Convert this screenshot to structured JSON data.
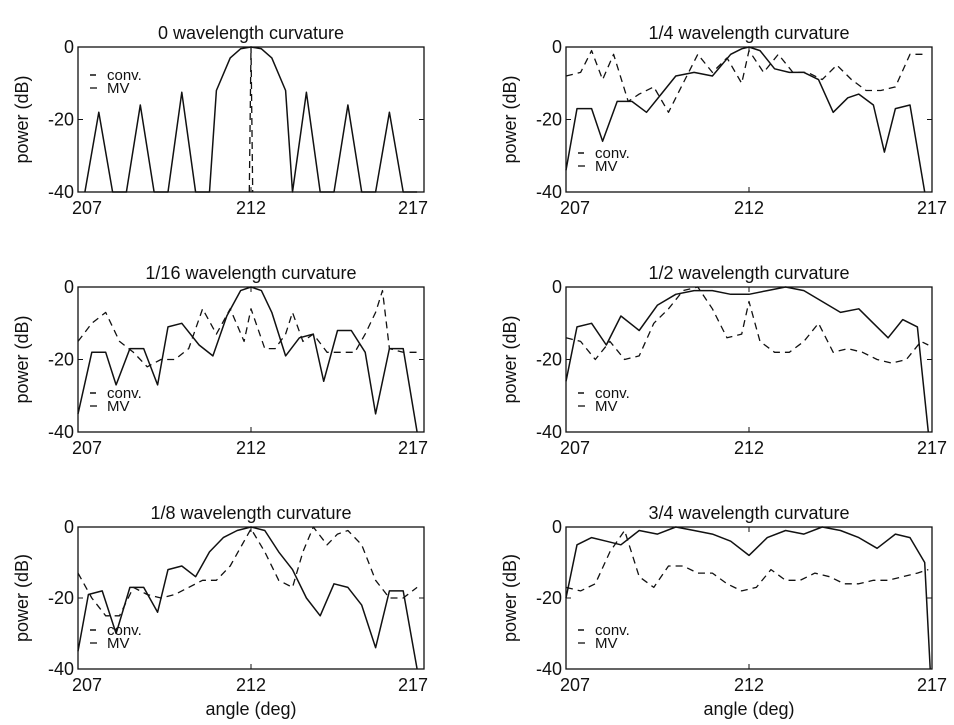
{
  "chart_data": [
    {
      "type": "line",
      "title": "0 wavelength curvature",
      "xlabel": "",
      "ylabel": "power (dB)",
      "xlim": [
        207,
        217
      ],
      "ylim": [
        -40,
        0
      ],
      "xticks": [
        "207",
        "212",
        "217"
      ],
      "yticks": [
        "0",
        "-20",
        "-40"
      ],
      "legend": [
        "conv.",
        "MV"
      ],
      "legend_placement": "upper-left",
      "series": [
        {
          "name": "conv.",
          "style": "solid",
          "x": [
            207.2,
            207.6,
            208.0,
            208.4,
            208.8,
            209.2,
            209.6,
            210.0,
            210.4,
            210.8,
            211.0,
            211.4,
            211.7,
            212.0,
            212.3,
            212.6,
            213.0,
            213.2,
            213.6,
            214.0,
            214.4,
            214.8,
            215.2,
            215.6,
            216.0,
            216.4,
            216.8
          ],
          "y": [
            -40,
            -18,
            -40,
            -40,
            -16,
            -40,
            -40,
            -12.5,
            -40,
            -40,
            -12,
            -3,
            -0.5,
            0,
            -0.5,
            -3,
            -12,
            -40,
            -12.5,
            -40,
            -40,
            -16,
            -40,
            -40,
            -18,
            -40,
            -40
          ]
        },
        {
          "name": "MV",
          "style": "dashed",
          "x": [
            211.95,
            212.0,
            212.05
          ],
          "y": [
            -40,
            0,
            -40
          ]
        }
      ]
    },
    {
      "type": "line",
      "title": "1/16 wavelength curvature",
      "xlabel": "",
      "ylabel": "power (dB)",
      "xlim": [
        207,
        217
      ],
      "ylim": [
        -40,
        0
      ],
      "xticks": [
        "207",
        "212",
        "217"
      ],
      "yticks": [
        "0",
        "-20",
        "-40"
      ],
      "legend": [
        "conv.",
        "MV"
      ],
      "legend_placement": "lower-left",
      "series": [
        {
          "name": "conv.",
          "style": "solid",
          "x": [
            207.0,
            207.4,
            207.8,
            208.1,
            208.5,
            208.9,
            209.3,
            209.6,
            210.0,
            210.5,
            210.9,
            211.3,
            211.7,
            212.0,
            212.3,
            212.6,
            213.0,
            213.4,
            213.8,
            214.1,
            214.5,
            214.9,
            215.3,
            215.6,
            216.0,
            216.4,
            216.8
          ],
          "y": [
            -35,
            -18,
            -18,
            -27,
            -17,
            -17,
            -27,
            -11,
            -10,
            -16,
            -19,
            -8,
            -1,
            0,
            -1,
            -7,
            -19,
            -14,
            -13,
            -26,
            -12,
            -12,
            -18,
            -35,
            -17,
            -17,
            -40
          ]
        },
        {
          "name": "MV",
          "style": "dashed",
          "x": [
            207.0,
            207.4,
            207.8,
            208.2,
            208.6,
            209.0,
            209.4,
            209.8,
            210.2,
            210.6,
            211.0,
            211.4,
            211.8,
            212.0,
            212.4,
            212.7,
            213.0,
            213.2,
            213.5,
            213.8,
            214.2,
            214.6,
            215.0,
            215.3,
            215.6,
            215.8,
            216.0,
            216.4,
            216.8
          ],
          "y": [
            -15,
            -10,
            -7,
            -15,
            -18,
            -22,
            -20,
            -20,
            -17,
            -6,
            -13,
            -6,
            -15,
            -6,
            -17,
            -17,
            -13,
            -7,
            -15,
            -13,
            -18,
            -18,
            -18,
            -13,
            -7,
            -1,
            -17,
            -18,
            -18
          ]
        }
      ]
    },
    {
      "type": "line",
      "title": "1/8 wavelength curvature",
      "xlabel": "angle (deg)",
      "ylabel": "power (dB)",
      "xlim": [
        207,
        217
      ],
      "ylim": [
        -40,
        0
      ],
      "xticks": [
        "207",
        "212",
        "217"
      ],
      "yticks": [
        "0",
        "-20",
        "-40"
      ],
      "legend": [
        "conv.",
        "MV"
      ],
      "legend_placement": "lower-left",
      "series": [
        {
          "name": "conv.",
          "style": "solid",
          "x": [
            207.0,
            207.3,
            207.7,
            208.1,
            208.5,
            208.9,
            209.3,
            209.6,
            210.0,
            210.4,
            210.8,
            211.2,
            211.6,
            212.0,
            212.4,
            212.8,
            213.2,
            213.6,
            214.0,
            214.4,
            214.8,
            215.2,
            215.6,
            216.0,
            216.4,
            216.8
          ],
          "y": [
            -35,
            -19,
            -18,
            -30,
            -17,
            -17,
            -24,
            -12,
            -11,
            -14,
            -7,
            -3,
            -1,
            0,
            -1,
            -7,
            -12,
            -20,
            -25,
            -16,
            -17,
            -22,
            -34,
            -18,
            -18,
            -40
          ]
        },
        {
          "name": "MV",
          "style": "dashed",
          "x": [
            207.0,
            207.4,
            207.8,
            208.2,
            208.6,
            209.0,
            209.4,
            209.8,
            210.2,
            210.6,
            211.0,
            211.4,
            211.8,
            212.0,
            212.4,
            212.8,
            213.2,
            213.5,
            213.8,
            214.2,
            214.5,
            214.8,
            215.2,
            215.6,
            216.0,
            216.4,
            216.8
          ],
          "y": [
            -13,
            -20,
            -25,
            -25,
            -17,
            -19,
            -20,
            -19,
            -17,
            -15,
            -15,
            -11,
            -4,
            -0.5,
            -7,
            -15,
            -17,
            -7,
            0,
            -5,
            -2,
            -1,
            -5,
            -15,
            -20,
            -20,
            -17
          ]
        }
      ]
    },
    {
      "type": "line",
      "title": "1/4 wavelength curvature",
      "xlabel": "",
      "ylabel": "power (dB)",
      "xlim": [
        207,
        217
      ],
      "ylim": [
        -40,
        0
      ],
      "xticks": [
        "207",
        "212",
        "217"
      ],
      "yticks": [
        "0",
        "-20",
        "-40"
      ],
      "legend": [
        "conv.",
        "MV"
      ],
      "legend_placement": "lower-left",
      "series": [
        {
          "name": "conv.",
          "style": "solid",
          "x": [
            207.0,
            207.3,
            207.7,
            208.0,
            208.4,
            208.8,
            209.2,
            209.6,
            210.0,
            210.5,
            211.0,
            211.5,
            211.8,
            212.0,
            212.3,
            212.7,
            213.1,
            213.5,
            213.9,
            214.3,
            214.7,
            215.0,
            215.4,
            215.7,
            216.0,
            216.4,
            216.8
          ],
          "y": [
            -34,
            -17,
            -17,
            -26,
            -15,
            -15,
            -18,
            -13,
            -8,
            -7,
            -8,
            -2,
            -0.5,
            0,
            -1,
            -6,
            -7,
            -7,
            -9,
            -18,
            -14,
            -13,
            -16,
            -29,
            -17,
            -16,
            -40
          ]
        },
        {
          "name": "MV",
          "style": "dashed",
          "x": [
            207.0,
            207.4,
            207.7,
            208.0,
            208.3,
            208.7,
            209.0,
            209.4,
            209.8,
            210.2,
            210.6,
            211.0,
            211.4,
            211.8,
            212.0,
            212.4,
            212.8,
            213.2,
            213.6,
            214.0,
            214.4,
            214.8,
            215.2,
            215.6,
            216.0,
            216.4,
            216.8
          ],
          "y": [
            -8,
            -7,
            -1,
            -9,
            -2,
            -15,
            -13,
            -11,
            -18,
            -10,
            -2,
            -7,
            -3,
            -10,
            -1,
            -7,
            -2,
            -7,
            -7,
            -9,
            -5,
            -9,
            -12,
            -12,
            -11,
            -2,
            -2
          ]
        }
      ]
    },
    {
      "type": "line",
      "title": "1/2 wavelength curvature",
      "xlabel": "",
      "ylabel": "power (dB)",
      "xlim": [
        207,
        217
      ],
      "ylim": [
        -40,
        0
      ],
      "xticks": [
        "207",
        "212",
        "217"
      ],
      "yticks": [
        "0",
        "-20",
        "-40"
      ],
      "legend": [
        "conv.",
        "MV"
      ],
      "legend_placement": "lower-left",
      "series": [
        {
          "name": "conv.",
          "style": "solid",
          "x": [
            207.0,
            207.3,
            207.7,
            208.1,
            208.5,
            209.0,
            209.5,
            210.0,
            210.5,
            211.0,
            211.5,
            212.0,
            212.5,
            213.0,
            213.5,
            214.0,
            214.5,
            215.0,
            215.4,
            215.8,
            216.2,
            216.6,
            216.9
          ],
          "y": [
            -26,
            -11,
            -10,
            -16,
            -8,
            -12,
            -5,
            -2,
            -1,
            -1,
            -2,
            -2,
            -1,
            0,
            -1,
            -4,
            -7,
            -6,
            -10,
            -14,
            -9,
            -11,
            -40
          ]
        },
        {
          "name": "MV",
          "style": "dashed",
          "x": [
            207.0,
            207.4,
            207.8,
            208.2,
            208.6,
            209.0,
            209.4,
            209.8,
            210.2,
            210.6,
            211.0,
            211.4,
            211.8,
            212.0,
            212.3,
            212.7,
            213.1,
            213.5,
            213.9,
            214.3,
            214.7,
            215.1,
            215.5,
            215.9,
            216.3,
            216.7,
            216.9
          ],
          "y": [
            -14,
            -15,
            -20,
            -15,
            -20,
            -19,
            -10,
            -6,
            -1,
            0,
            -6,
            -14,
            -13,
            -4,
            -15,
            -18,
            -18,
            -15,
            -10,
            -18,
            -17,
            -18,
            -20,
            -21,
            -20,
            -15,
            -16
          ]
        }
      ]
    },
    {
      "type": "line",
      "title": "3/4 wavelength curvature",
      "xlabel": "angle (deg)",
      "ylabel": "power (dB)",
      "xlim": [
        207,
        217
      ],
      "ylim": [
        -40,
        0
      ],
      "xticks": [
        "207",
        "212",
        "217"
      ],
      "yticks": [
        "0",
        "-20",
        "-40"
      ],
      "legend": [
        "conv.",
        "MV"
      ],
      "legend_placement": "lower-left",
      "series": [
        {
          "name": "conv.",
          "style": "solid",
          "x": [
            207.0,
            207.3,
            207.7,
            208.1,
            208.5,
            209.0,
            209.5,
            210.0,
            210.5,
            211.0,
            211.5,
            212.0,
            212.5,
            213.0,
            213.5,
            214.0,
            214.5,
            215.0,
            215.5,
            216.0,
            216.4,
            216.8,
            216.95
          ],
          "y": [
            -20,
            -5,
            -3,
            -4,
            -5,
            -1,
            -2,
            0,
            -1,
            -2,
            -4,
            -8,
            -3,
            -1,
            -2,
            0,
            -1,
            -3,
            -6,
            -2,
            -3,
            -10,
            -40
          ]
        },
        {
          "name": "MV",
          "style": "dashed",
          "x": [
            207.0,
            207.4,
            207.8,
            208.2,
            208.6,
            209.0,
            209.4,
            209.8,
            210.2,
            210.6,
            211.0,
            211.4,
            211.8,
            212.2,
            212.6,
            213.0,
            213.4,
            213.8,
            214.2,
            214.6,
            215.0,
            215.4,
            215.8,
            216.2,
            216.6,
            216.9
          ],
          "y": [
            -17,
            -18,
            -16,
            -7,
            -1,
            -14,
            -17,
            -11,
            -11,
            -13,
            -13,
            -16,
            -18,
            -17,
            -12,
            -15,
            -15,
            -13,
            -14,
            -16,
            -16,
            -15,
            -15,
            -14,
            -13,
            -12
          ]
        }
      ]
    }
  ]
}
